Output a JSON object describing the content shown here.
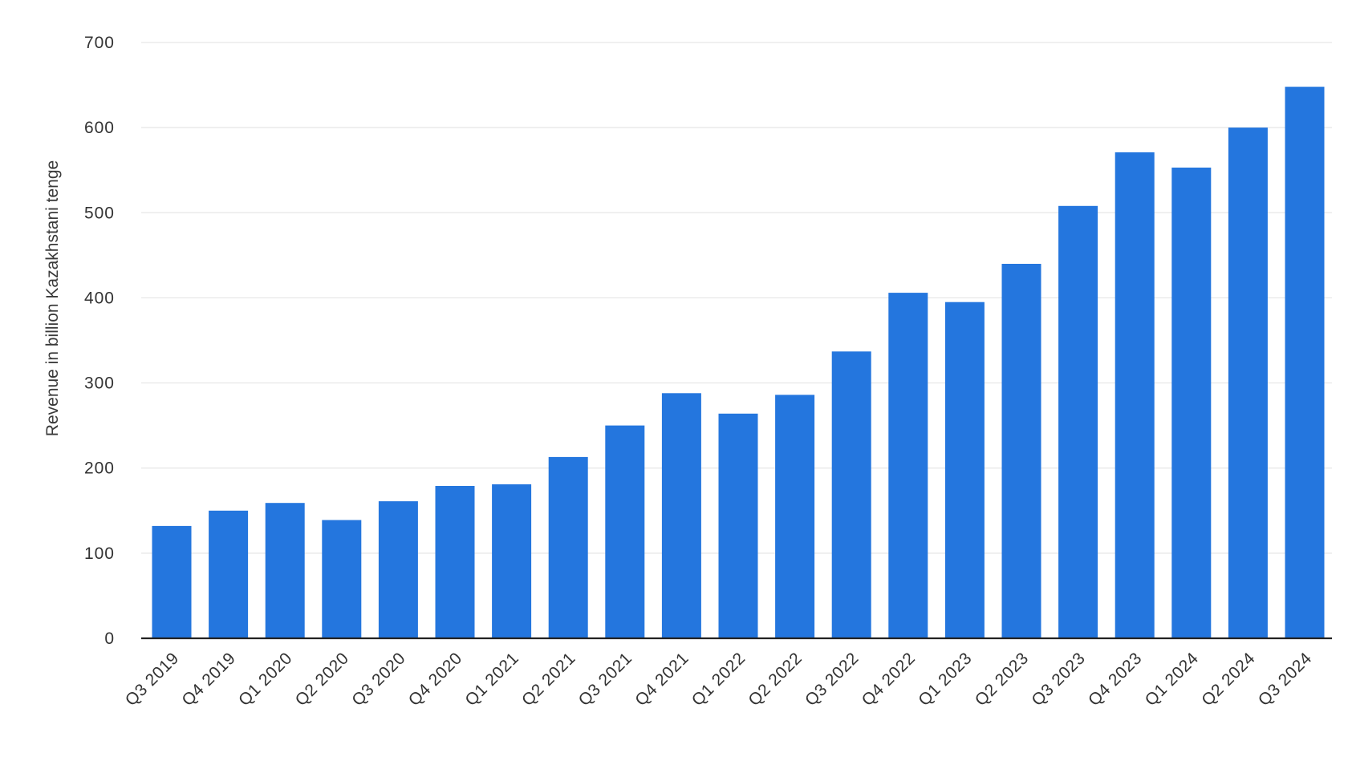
{
  "chart_data": {
    "type": "bar",
    "title": "",
    "xlabel": "",
    "ylabel": "Revenue in billion Kazakhstani tenge",
    "ylim": [
      0,
      700
    ],
    "yticks": [
      0,
      100,
      200,
      300,
      400,
      500,
      600,
      700
    ],
    "grid": true,
    "bar_color": "#2476de",
    "categories": [
      "Q3 2019",
      "Q4 2019",
      "Q1 2020",
      "Q2 2020",
      "Q3 2020",
      "Q4 2020",
      "Q1 2021",
      "Q2 2021",
      "Q3 2021",
      "Q4 2021",
      "Q1 2022",
      "Q2 2022",
      "Q3 2022",
      "Q4 2022",
      "Q1 2023",
      "Q2 2023",
      "Q3 2023",
      "Q4 2023",
      "Q1 2024",
      "Q2 2024",
      "Q3 2024"
    ],
    "values": [
      132,
      150,
      159,
      139,
      161,
      179,
      181,
      213,
      250,
      288,
      264,
      286,
      337,
      406,
      395,
      440,
      508,
      571,
      553,
      600,
      648
    ]
  }
}
